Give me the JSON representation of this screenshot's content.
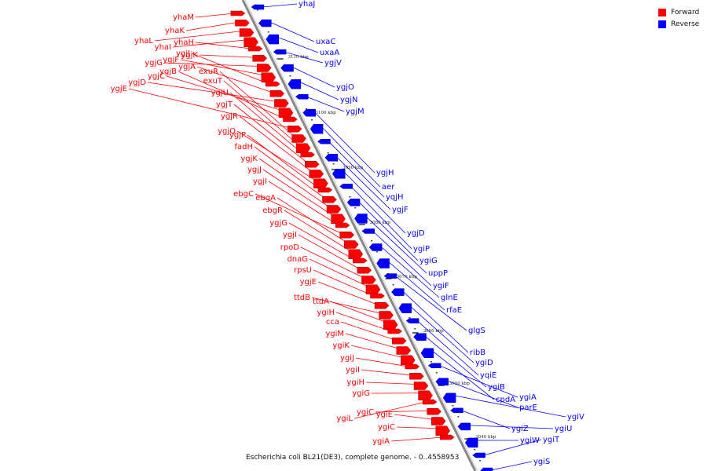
{
  "caption": "Escherichia coli BL21(DE3), complete genome. - 0..4558953",
  "legend": [
    {
      "label": "Forward",
      "color": "#ff0000"
    },
    {
      "label": "Reverse",
      "color": "#0000ff"
    }
  ],
  "colors": {
    "forward": "#ff0000",
    "reverse": "#0000ff",
    "backbone": "#888888"
  },
  "ticks": [
    "3110 kbp",
    "3100 kbp",
    "3090 kbp",
    "3080 kbp",
    "3070 kbp",
    "3060 kbp",
    "3050 kbp",
    "3040 kbp"
  ],
  "forward_genes": [
    "yhaM",
    "yhaK",
    "yhaL",
    "yhaI",
    "yhaH",
    "ygjK",
    "ygjG",
    "ygjF",
    "ygjJ",
    "ygjA",
    "ygjD",
    "ygjC",
    "ygjB",
    "ygjE",
    "exuR",
    "exuT",
    "ygjU",
    "ygjT",
    "ygjR",
    "ygjQ",
    "ygjP",
    "fadH",
    "ygjK",
    "ygjJ",
    "ygjI",
    "ebgC",
    "ebgA",
    "ebgR",
    "ygjG",
    "ygjI",
    "rpoD",
    "dnaG",
    "rpsU",
    "ygjE",
    "ttdB",
    "ttdA",
    "ygiH",
    "cca",
    "ygiM",
    "ygiK",
    "ygiJ",
    "ygiI",
    "ygiH",
    "ygiG",
    "ygiL",
    "ygiC",
    "ygiE",
    "ygiC",
    "ygiA"
  ],
  "reverse_genes": [
    "yhaJ",
    "uxaC",
    "uxaA",
    "ygjV",
    "ygjO",
    "ygjN",
    "ygjM",
    "ygjH",
    "aer",
    "yqjH",
    "ygjF",
    "ygjD",
    "ygiP",
    "ygiG",
    "uppP",
    "ygiF",
    "glnE",
    "rfaE",
    "glgS",
    "ribB",
    "ygiD",
    "yqiE",
    "ygiB",
    "cpdA",
    "ygiA",
    "parE",
    "ygiV",
    "ygiZ",
    "ygiU",
    "ygiW",
    "ygiT",
    "ygiS"
  ]
}
